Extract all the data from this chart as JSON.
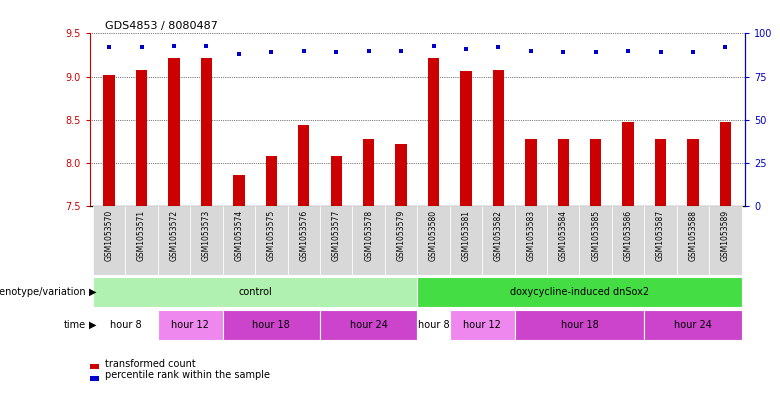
{
  "title": "GDS4853 / 8080487",
  "samples": [
    "GSM1053570",
    "GSM1053571",
    "GSM1053572",
    "GSM1053573",
    "GSM1053574",
    "GSM1053575",
    "GSM1053576",
    "GSM1053577",
    "GSM1053578",
    "GSM1053579",
    "GSM1053580",
    "GSM1053581",
    "GSM1053582",
    "GSM1053583",
    "GSM1053584",
    "GSM1053585",
    "GSM1053586",
    "GSM1053587",
    "GSM1053588",
    "GSM1053589"
  ],
  "transformed_count": [
    9.02,
    9.08,
    9.22,
    9.22,
    7.86,
    8.08,
    8.44,
    8.08,
    8.28,
    8.22,
    9.22,
    9.07,
    9.08,
    8.28,
    8.28,
    8.28,
    8.48,
    8.28,
    8.28,
    8.48
  ],
  "percentile_rank": [
    92,
    92,
    93,
    93,
    88,
    89,
    90,
    89,
    90,
    90,
    93,
    91,
    92,
    90,
    89,
    89,
    90,
    89,
    89,
    92
  ],
  "ylim_left": [
    7.5,
    9.5
  ],
  "ylim_right": [
    0,
    100
  ],
  "yticks_left": [
    7.5,
    8.0,
    8.5,
    9.0,
    9.5
  ],
  "yticks_right": [
    0,
    25,
    50,
    75,
    100
  ],
  "bar_color": "#cc0000",
  "dot_color": "#0000cc",
  "background_color": "#ffffff",
  "plot_bg": "#ffffff",
  "grid_color": "#000000",
  "label_bg": "#d8d8d8",
  "geno_groups": [
    {
      "label": "control",
      "start": 0,
      "end": 9,
      "color": "#b0f0b0"
    },
    {
      "label": "doxycycline-induced dnSox2",
      "start": 10,
      "end": 19,
      "color": "#44dd44"
    }
  ],
  "time_groups": [
    {
      "label": "hour 8",
      "start": 0,
      "end": 1,
      "color": "#ffffff"
    },
    {
      "label": "hour 12",
      "start": 2,
      "end": 3,
      "color": "#ee88ee"
    },
    {
      "label": "hour 18",
      "start": 4,
      "end": 6,
      "color": "#cc44cc"
    },
    {
      "label": "hour 24",
      "start": 7,
      "end": 9,
      "color": "#cc44cc"
    },
    {
      "label": "hour 8",
      "start": 10,
      "end": 10,
      "color": "#ffffff"
    },
    {
      "label": "hour 12",
      "start": 11,
      "end": 12,
      "color": "#ee88ee"
    },
    {
      "label": "hour 18",
      "start": 13,
      "end": 16,
      "color": "#cc44cc"
    },
    {
      "label": "hour 24",
      "start": 17,
      "end": 19,
      "color": "#cc44cc"
    }
  ]
}
